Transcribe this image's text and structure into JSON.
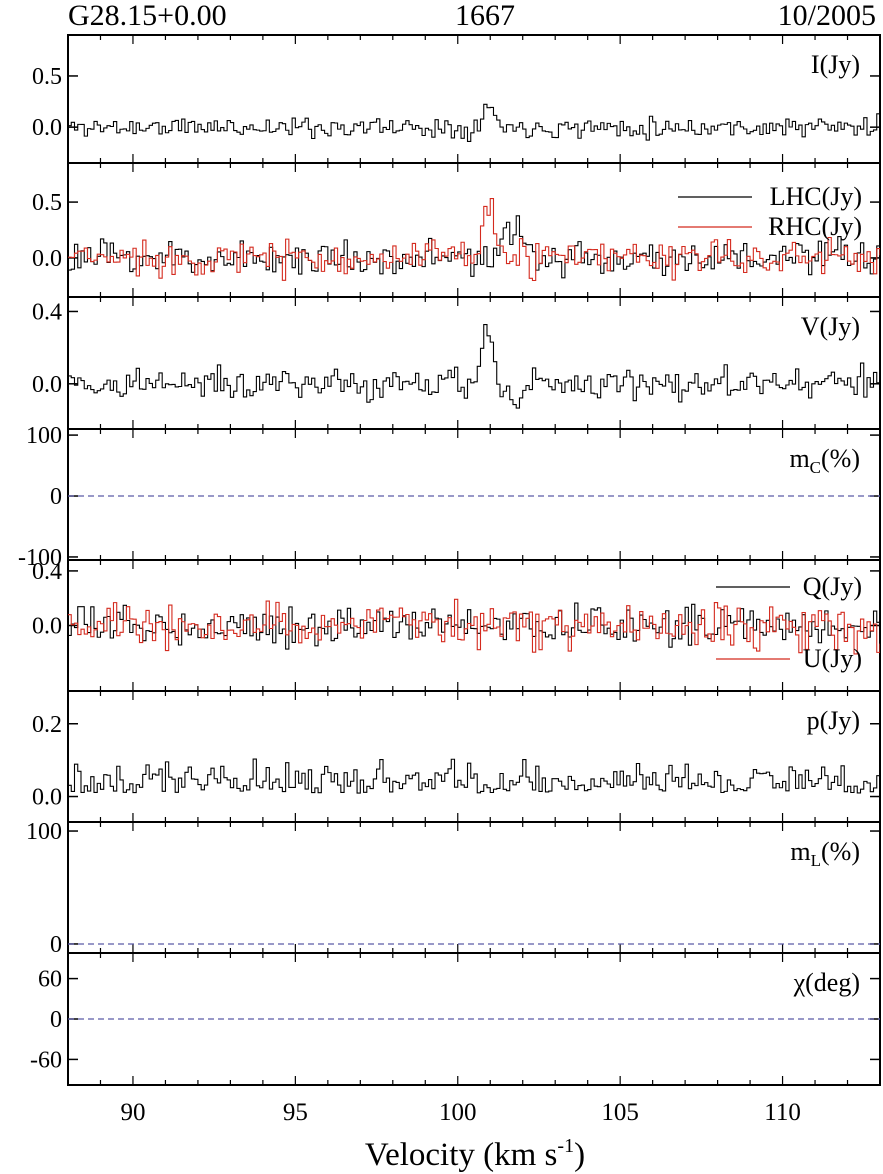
{
  "header": {
    "source": "G28.15+0.00",
    "frequency": "1667",
    "date": "10/2005"
  },
  "colors": {
    "lhc": "#000000",
    "rhc": "#d42a1e",
    "q": "#000000",
    "u": "#d42a1e",
    "zero_line": "#5a5aa8"
  },
  "chart_data": {
    "type": "line",
    "subtype": "stepped spectra, stacked panels sharing x axis",
    "xlabel": "Velocity (km s",
    "xlabel_sup": "-1",
    "xlabel_close": ")",
    "xlim": [
      88,
      113
    ],
    "xticks": [
      90,
      95,
      100,
      105,
      110
    ],
    "channel_width": 0.1,
    "panels": [
      {
        "id": "I",
        "label": "I(Jy)",
        "ylim": [
          -0.35,
          0.9
        ],
        "yticks": [
          {
            "value": 0.5,
            "text": "0.5"
          },
          {
            "value": 0.0,
            "text": "0.0"
          }
        ],
        "series": [
          {
            "name": "I(Jy)",
            "color": "#000000",
            "noise": 0.045,
            "seed": 11,
            "features": [
              {
                "v": 100.9,
                "amp": 0.2,
                "w": 0.18
              }
            ]
          }
        ]
      },
      {
        "id": "LR",
        "label": "",
        "legend": [
          {
            "text": "LHC(Jy)",
            "color": "#000000"
          },
          {
            "text": "RHC(Jy)",
            "color": "#d42a1e"
          }
        ],
        "ylim": [
          -0.35,
          0.85
        ],
        "yticks": [
          {
            "value": 0.5,
            "text": "0.5"
          },
          {
            "value": 0.0,
            "text": "0.0"
          }
        ],
        "series": [
          {
            "name": "LHC(Jy)",
            "color": "#000000",
            "noise": 0.07,
            "seed": 23,
            "features": [
              {
                "v": 101.7,
                "amp": 0.24,
                "w": 0.25
              }
            ]
          },
          {
            "name": "RHC(Jy)",
            "color": "#d42a1e",
            "noise": 0.07,
            "seed": 37,
            "features": [
              {
                "v": 100.9,
                "amp": 0.52,
                "w": 0.16
              }
            ]
          }
        ]
      },
      {
        "id": "V",
        "label": "V(Jy)",
        "ylim": [
          -0.25,
          0.48
        ],
        "yticks": [
          {
            "value": 0.4,
            "text": "0.4"
          },
          {
            "value": 0.0,
            "text": "0.0"
          }
        ],
        "series": [
          {
            "name": "V(Jy)",
            "color": "#000000",
            "noise": 0.04,
            "seed": 41,
            "features": [
              {
                "v": 100.9,
                "amp": 0.28,
                "w": 0.16
              },
              {
                "v": 101.7,
                "amp": -0.12,
                "w": 0.25
              }
            ]
          }
        ]
      },
      {
        "id": "mc",
        "label": "m",
        "label_sub": "C",
        "label_tail": "(%)",
        "ylim": [
          -105,
          110
        ],
        "yticks": [
          {
            "value": 100,
            "text": "100"
          },
          {
            "value": 0,
            "text": "0"
          },
          {
            "value": -100,
            "text": "-100"
          }
        ],
        "zero_line": true,
        "series": []
      },
      {
        "id": "QU",
        "label": "",
        "legend": [
          {
            "text": "Q(Jy)",
            "color": "#000000"
          },
          {
            "text": "U(Jy)",
            "color": "#d42a1e"
          }
        ],
        "ylim": [
          -0.48,
          0.48
        ],
        "yticks": [
          {
            "value": 0.4,
            "text": "0.4"
          },
          {
            "value": 0.0,
            "text": "0.0"
          }
        ],
        "series": [
          {
            "name": "Q(Jy)",
            "color": "#000000",
            "noise": 0.06,
            "seed": 53,
            "features": []
          },
          {
            "name": "U(Jy)",
            "color": "#d42a1e",
            "noise": 0.075,
            "seed": 67,
            "features": []
          }
        ]
      },
      {
        "id": "p",
        "label": "p(Jy)",
        "ylim": [
          -0.07,
          0.29
        ],
        "yticks": [
          {
            "value": 0.2,
            "text": "0.2"
          },
          {
            "value": 0.0,
            "text": "0.0"
          }
        ],
        "series": [
          {
            "name": "p(Jy)",
            "color": "#000000",
            "noise": 0.03,
            "seed": 79,
            "positive": true,
            "features": []
          }
        ]
      },
      {
        "id": "ml",
        "label": "m",
        "label_sub": "L",
        "label_tail": "(%)",
        "ylim": [
          -8,
          108
        ],
        "yticks": [
          {
            "value": 100,
            "text": "100"
          },
          {
            "value": 0,
            "text": "0"
          }
        ],
        "zero_line": true,
        "series": []
      },
      {
        "id": "chi",
        "label": "χ(deg)",
        "ylim": [
          -98,
          98
        ],
        "yticks": [
          {
            "value": 60,
            "text": "60"
          },
          {
            "value": 0,
            "text": "0"
          },
          {
            "value": -60,
            "text": "-60"
          }
        ],
        "zero_line": true,
        "series": []
      }
    ]
  }
}
